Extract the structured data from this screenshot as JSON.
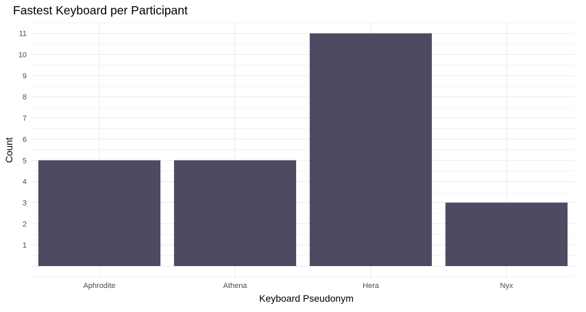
{
  "chart_data": {
    "type": "bar",
    "title": "Fastest Keyboard per Participant",
    "xlabel": "Keyboard Pseudonym",
    "ylabel": "Count",
    "categories": [
      "Aphrodite",
      "Athena",
      "Hera",
      "Nyx"
    ],
    "values": [
      5,
      5,
      11,
      3
    ],
    "yticks": [
      1,
      2,
      3,
      4,
      5,
      6,
      7,
      8,
      9,
      10,
      11
    ],
    "ylim": [
      0,
      11
    ],
    "grid": true,
    "legend": "none",
    "bar_color": "#4f4a62",
    "grid_color": "#ebebeb"
  }
}
